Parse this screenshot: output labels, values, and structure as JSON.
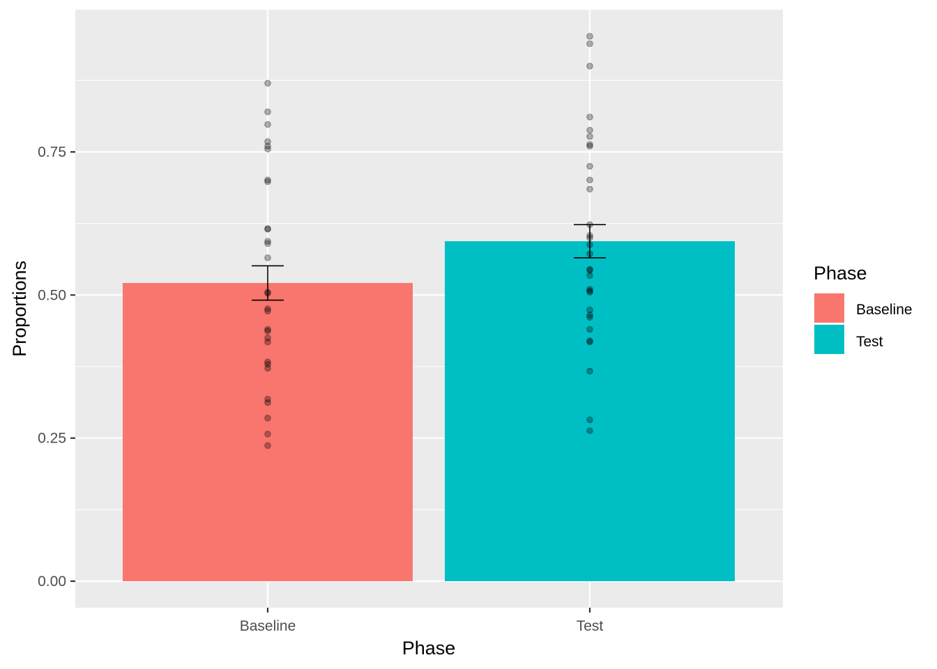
{
  "chart_data": {
    "type": "bar",
    "title": "",
    "xlabel": "Phase",
    "ylabel": "Proportions",
    "categories": [
      "Baseline",
      "Test"
    ],
    "values": [
      0.521,
      0.594
    ],
    "error_bars": [
      {
        "category": "Baseline",
        "lower": 0.491,
        "upper": 0.551
      },
      {
        "category": "Test",
        "lower": 0.565,
        "upper": 0.623
      }
    ],
    "points": [
      {
        "category": "Baseline",
        "values": [
          0.87,
          0.82,
          0.798,
          0.768,
          0.76,
          0.755,
          0.701,
          0.698,
          0.616,
          0.615,
          0.594,
          0.59,
          0.565,
          0.505,
          0.503,
          0.476,
          0.472,
          0.44,
          0.437,
          0.425,
          0.418,
          0.383,
          0.379,
          0.372,
          0.318,
          0.312,
          0.285,
          0.257,
          0.237
        ]
      },
      {
        "category": "Test",
        "values": [
          0.952,
          0.939,
          0.9,
          0.811,
          0.788,
          0.777,
          0.763,
          0.76,
          0.725,
          0.701,
          0.685,
          0.623,
          0.604,
          0.6,
          0.588,
          0.572,
          0.545,
          0.543,
          0.534,
          0.51,
          0.507,
          0.505,
          0.474,
          0.465,
          0.461,
          0.44,
          0.42,
          0.418,
          0.367,
          0.282,
          0.263
        ]
      }
    ],
    "ylim": [
      -0.047,
      0.999
    ],
    "yticks": [
      "0.00",
      "0.25",
      "0.50",
      "0.75"
    ],
    "ytick_values": [
      0,
      0.25,
      0.5,
      0.75
    ],
    "grid": true,
    "legend": {
      "title": "Phase",
      "placement": "right",
      "entries": [
        {
          "label": "Baseline",
          "color": "#F8766D"
        },
        {
          "label": "Test",
          "color": "#00BFC4"
        }
      ]
    },
    "colors": {
      "panel": "#EBEBEB",
      "grid": "#FFFFFF",
      "points": "#000000",
      "error_bar": "#000000"
    }
  }
}
